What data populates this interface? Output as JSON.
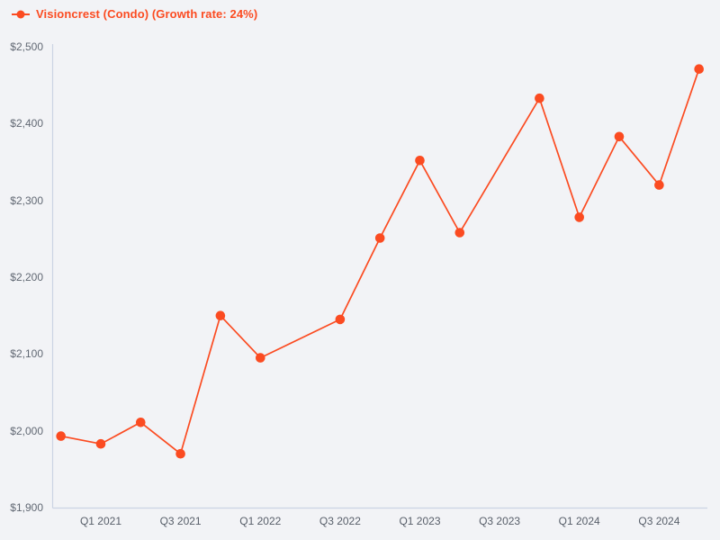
{
  "legend": {
    "label": "Visioncrest (Condo) (Growth rate: 24%)"
  },
  "colors": {
    "series": "#fb4b21",
    "background": "#f2f3f6",
    "axis": "#cbd3e3",
    "y_tick_text": "#616873",
    "x_tick_text": "#575e69"
  },
  "chart_data": {
    "type": "line",
    "series_name": "Visioncrest (Condo)",
    "growth_rate": "24%",
    "title": "Visioncrest (Condo) (Growth rate: 24%)",
    "categories": [
      "Q4 2020",
      "Q1 2021",
      "Q2 2021",
      "Q3 2021",
      "Q4 2021",
      "Q1 2022",
      "Q2 2022",
      "Q3 2022",
      "Q4 2022",
      "Q1 2023",
      "Q2 2023",
      "Q3 2023",
      "Q4 2023",
      "Q1 2024",
      "Q2 2024",
      "Q3 2024",
      "Q4 2024"
    ],
    "values": [
      1993,
      1983,
      2011,
      1970,
      2150,
      2095,
      null,
      2145,
      2251,
      2352,
      2258,
      null,
      2433,
      2278,
      2383,
      2320,
      2471
    ],
    "x_tick_labels": [
      "Q1 2021",
      "Q3 2021",
      "Q1 2022",
      "Q3 2022",
      "Q1 2023",
      "Q3 2023",
      "Q1 2024",
      "Q3 2024"
    ],
    "x_tick_indices": [
      1,
      3,
      5,
      7,
      9,
      11,
      13,
      15
    ],
    "y_tick_labels": [
      "$2,500",
      "$2,400",
      "$2,300",
      "$2,200",
      "$2,100",
      "$2,000",
      "$1,900"
    ],
    "y_tick_values": [
      2500,
      2400,
      2300,
      2200,
      2100,
      2000,
      1900
    ],
    "ylim": [
      1900,
      2500
    ],
    "grid": false,
    "legend_position": "top-left",
    "marker": "circle"
  }
}
